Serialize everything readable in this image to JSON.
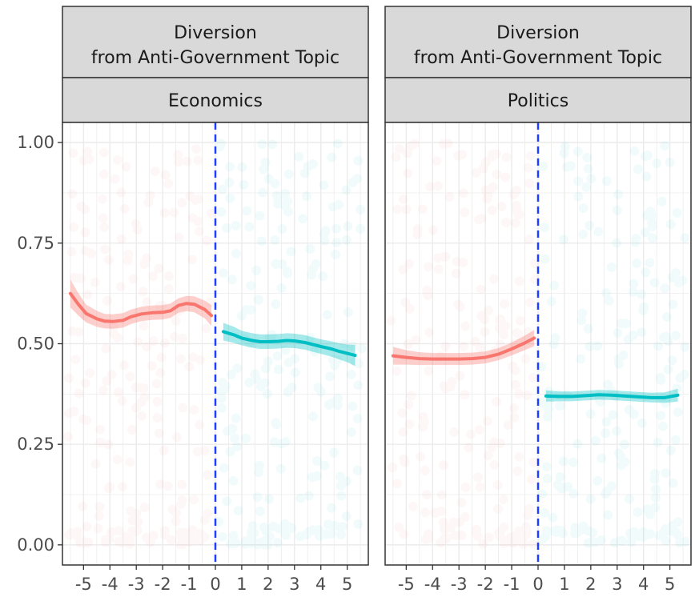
{
  "chart_data": {
    "type": "scatter",
    "facet_row_label": "Diversion from Anti-Government Topic",
    "x_ticks": [
      "-5",
      "-4",
      "-3",
      "-2",
      "-1",
      "0",
      "1",
      "2",
      "3",
      "4",
      "5"
    ],
    "y_ticks": [
      "0.00",
      "0.25",
      "0.50",
      "0.75",
      "1.00"
    ],
    "xlim": [
      -5.8,
      5.8
    ],
    "ylim": [
      -0.05,
      1.05
    ],
    "cutoff_x": 0,
    "grid": true,
    "colors": {
      "pre": "#F8766D",
      "post": "#00BFC4",
      "cutoff": "#1f3fff",
      "strip_bg": "#d9d9d9"
    },
    "panels": [
      {
        "label": "Economics",
        "fits": [
          {
            "side": "pre",
            "x": [
              -5.5,
              -5.2,
              -4.9,
              -4.5,
              -4.2,
              -3.9,
              -3.5,
              -3.2,
              -2.8,
              -2.4,
              -2.0,
              -1.7,
              -1.4,
              -1.1,
              -0.8,
              -0.4,
              -0.15
            ],
            "y": [
              0.625,
              0.598,
              0.575,
              0.562,
              0.556,
              0.555,
              0.558,
              0.567,
              0.574,
              0.577,
              0.578,
              0.582,
              0.595,
              0.6,
              0.598,
              0.585,
              0.57
            ],
            "se": [
              0.035,
              0.028,
              0.022,
              0.02,
              0.018,
              0.018,
              0.018,
              0.018,
              0.018,
              0.018,
              0.018,
              0.018,
              0.018,
              0.019,
              0.02,
              0.022,
              0.026
            ]
          },
          {
            "side": "post",
            "x": [
              0.3,
              0.7,
              1.0,
              1.4,
              1.7,
              2.0,
              2.4,
              2.7,
              3.0,
              3.4,
              3.7,
              4.0,
              4.4,
              4.7,
              5.0,
              5.3
            ],
            "y": [
              0.53,
              0.522,
              0.514,
              0.508,
              0.505,
              0.505,
              0.506,
              0.508,
              0.507,
              0.503,
              0.498,
              0.493,
              0.487,
              0.481,
              0.476,
              0.471
            ],
            "se": [
              0.022,
              0.02,
              0.018,
              0.018,
              0.018,
              0.018,
              0.018,
              0.018,
              0.018,
              0.018,
              0.018,
              0.018,
              0.019,
              0.02,
              0.022,
              0.026
            ]
          }
        ]
      },
      {
        "label": "Politics",
        "fits": [
          {
            "side": "pre",
            "x": [
              -5.5,
              -5.0,
              -4.5,
              -4.0,
              -3.5,
              -3.0,
              -2.5,
              -2.0,
              -1.5,
              -1.0,
              -0.5,
              -0.15
            ],
            "y": [
              0.47,
              0.466,
              0.463,
              0.462,
              0.462,
              0.462,
              0.463,
              0.466,
              0.474,
              0.487,
              0.502,
              0.514
            ],
            "se": [
              0.022,
              0.018,
              0.016,
              0.015,
              0.015,
              0.015,
              0.015,
              0.015,
              0.015,
              0.016,
              0.018,
              0.02
            ]
          },
          {
            "side": "post",
            "x": [
              0.3,
              0.8,
              1.3,
              1.8,
              2.3,
              2.8,
              3.3,
              3.8,
              4.3,
              4.8,
              5.3
            ],
            "y": [
              0.37,
              0.369,
              0.369,
              0.371,
              0.373,
              0.372,
              0.37,
              0.368,
              0.366,
              0.366,
              0.372
            ],
            "se": [
              0.014,
              0.012,
              0.012,
              0.012,
              0.012,
              0.012,
              0.012,
              0.012,
              0.012,
              0.013,
              0.016
            ]
          }
        ]
      }
    ]
  }
}
